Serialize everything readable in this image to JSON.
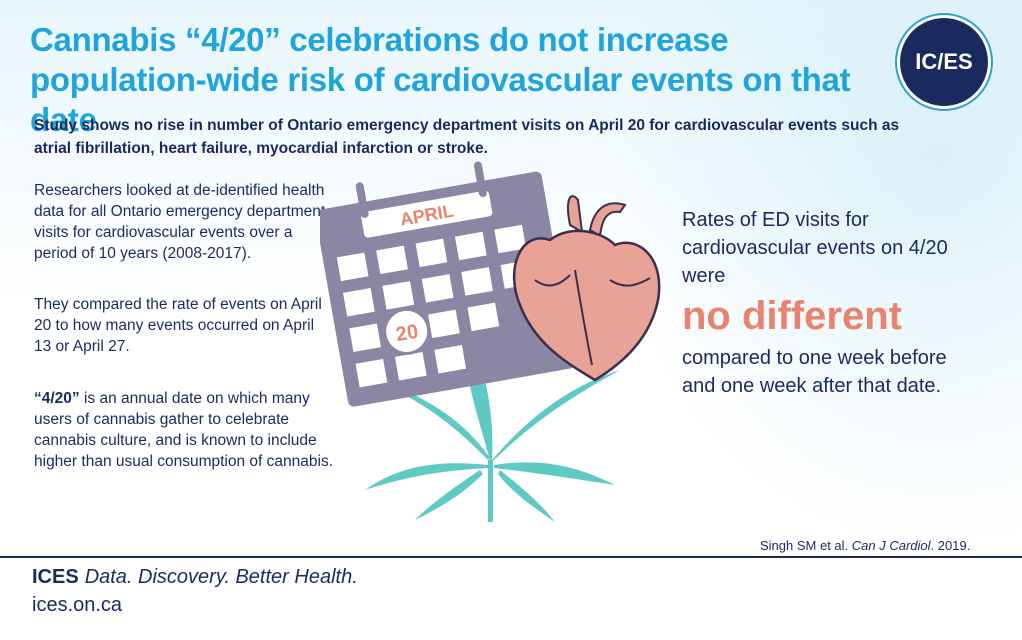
{
  "header": {
    "title": "Cannabis “4/20” celebrations do not increase population-wide risk of cardiovascular events on that date",
    "logo_text": "IC/ES"
  },
  "subtitle": "Study shows no rise in number of Ontario emergency department visits on April 20 for cardiovascular events such as atrial fibrillation, heart failure, myocardial infarction or stroke.",
  "left_column": {
    "para1": "Researchers looked at de-identified health data for all Ontario emergency department visits for cardiovascular events over a period of 10 years (2008-2017).",
    "para2": "They compared the rate of events on April 20 to how many events occurred on April 13 or April 27.",
    "para3_bold": "“4/20”",
    "para3_rest": " is an annual date on which many users of cannabis gather to celebrate cannabis culture, and is known to include higher than usual consumption of cannabis."
  },
  "illustration": {
    "calendar_month": "APRIL",
    "calendar_day": "20"
  },
  "right_column": {
    "lead": "Rates of ED visits for cardiovascular events on 4/20 were",
    "highlight": "no different",
    "tail": "compared to one week before and one week after that date."
  },
  "citation": {
    "authors": "Singh SM et al. ",
    "journal": "Can J Cardiol",
    "year": ". 2019."
  },
  "footer": {
    "brand": "ICES",
    "tagline": "Data. Discovery. Better Health.",
    "website": "ices.on.ca"
  },
  "colors": {
    "title_blue": "#1fa4dc",
    "navy": "#1b2a5e",
    "coral": "#e8836f",
    "calendar_grey": "#8b86a3",
    "leaf_teal": "#5fc9c4",
    "heart_pink": "#e8a396"
  }
}
